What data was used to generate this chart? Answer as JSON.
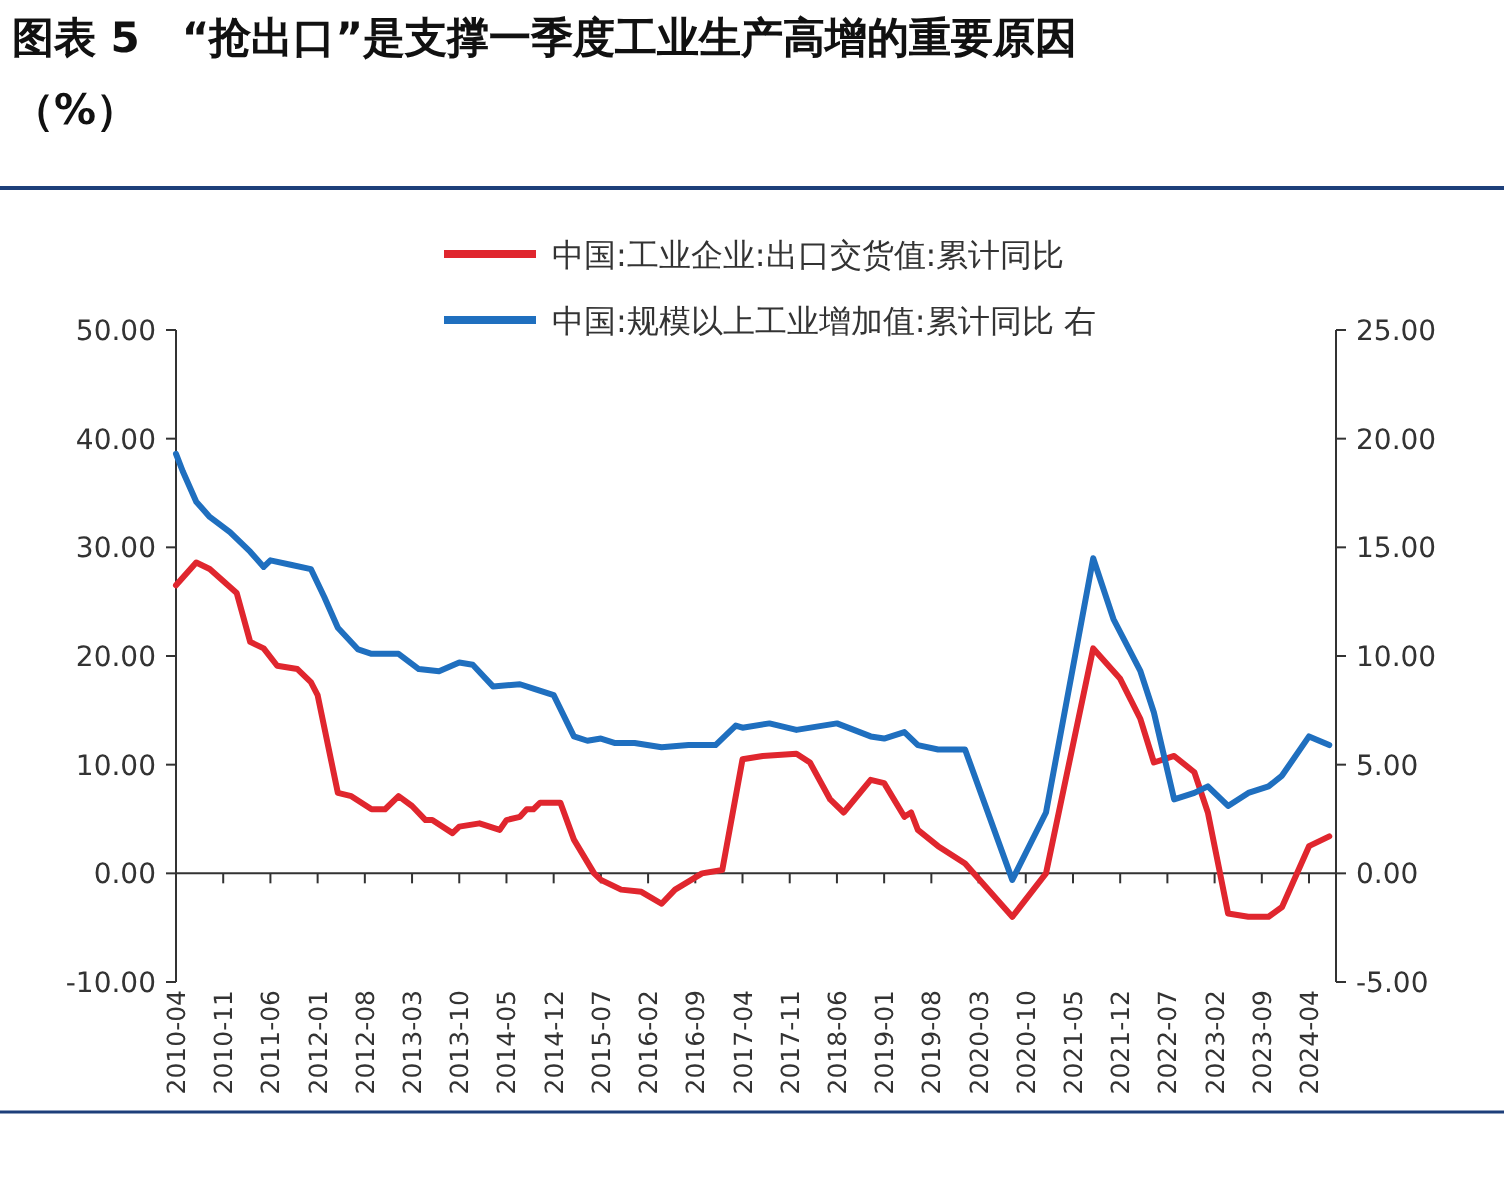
{
  "chart_data": {
    "type": "line",
    "title": "图表 5　“抢出口”是支撑一季度工业生产高增的重要原因（%）",
    "xlim": [
      "2010-04",
      "2024-08"
    ],
    "xticks": [
      "2010-04",
      "2010-11",
      "2011-06",
      "2012-01",
      "2012-08",
      "2013-03",
      "2013-10",
      "2014-05",
      "2014-12",
      "2015-07",
      "2016-02",
      "2016-09",
      "2017-04",
      "2017-11",
      "2018-06",
      "2019-01",
      "2019-08",
      "2020-03",
      "2020-10",
      "2021-05",
      "2021-12",
      "2022-07",
      "2023-02",
      "2023-09",
      "2024-04"
    ],
    "ylim": [
      -10,
      50
    ],
    "yticks": [
      {
        "value": -10,
        "label": "-10.00"
      },
      {
        "value": 0,
        "label": "0.00"
      },
      {
        "value": 10,
        "label": "10.00"
      },
      {
        "value": 20,
        "label": "20.00"
      },
      {
        "value": 30,
        "label": "30.00"
      },
      {
        "value": 40,
        "label": "40.00"
      },
      {
        "value": 50,
        "label": "50.00"
      }
    ],
    "y2lim": [
      -5,
      25
    ],
    "y2ticks": [
      {
        "value": -5,
        "label": "-5.00"
      },
      {
        "value": 0,
        "label": "0.00"
      },
      {
        "value": 5,
        "label": "5.00"
      },
      {
        "value": 10,
        "label": "10.00"
      },
      {
        "value": 15,
        "label": "15.00"
      },
      {
        "value": 20,
        "label": "20.00"
      },
      {
        "value": 25,
        "label": "25.00"
      }
    ],
    "legend": "top",
    "series": [
      {
        "name": "中国:工业企业:出口交货值:累计同比",
        "color": "#e0262e",
        "x": [
          "2010-04",
          "2010-07",
          "2010-09",
          "2011-01",
          "2011-03",
          "2011-05",
          "2011-07",
          "2011-10",
          "2011-12",
          "2012-01",
          "2012-04",
          "2012-06",
          "2012-09",
          "2012-11",
          "2013-01",
          "2013-03",
          "2013-05",
          "2013-06",
          "2013-09",
          "2013-10",
          "2014-01",
          "2014-04",
          "2014-05",
          "2014-07",
          "2014-08",
          "2014-09",
          "2014-10",
          "2015-01",
          "2015-03",
          "2015-06",
          "2015-07",
          "2015-10",
          "2016-01",
          "2016-04",
          "2016-06",
          "2016-10",
          "2017-01",
          "2017-04",
          "2017-07",
          "2017-12",
          "2018-02",
          "2018-05",
          "2018-07",
          "2018-11",
          "2019-01",
          "2019-04",
          "2019-05",
          "2019-06",
          "2019-09",
          "2020-01",
          "2020-08",
          "2021-01",
          "2021-08",
          "2021-12",
          "2022-03",
          "2022-05",
          "2022-08",
          "2022-11",
          "2023-01",
          "2023-04",
          "2023-07",
          "2023-10",
          "2023-12",
          "2024-04",
          "2024-07"
        ],
        "values": [
          26.5,
          28.6,
          28.0,
          25.8,
          21.3,
          20.7,
          19.1,
          18.8,
          17.6,
          16.4,
          7.4,
          7.1,
          5.9,
          5.9,
          7.1,
          6.2,
          4.9,
          4.9,
          3.7,
          4.3,
          4.6,
          4.0,
          4.9,
          5.2,
          5.9,
          5.9,
          6.5,
          6.5,
          3.1,
          0,
          -0.6,
          -1.5,
          -1.7,
          -2.8,
          -1.5,
          0,
          0.3,
          10.5,
          10.8,
          11.0,
          10.2,
          6.8,
          5.6,
          8.6,
          8.3,
          5.2,
          5.6,
          4.0,
          2.5,
          0.9,
          -4.0,
          0,
          20.7,
          17.9,
          14.2,
          10.2,
          10.8,
          9.3,
          5.6,
          -3.7,
          -4.0,
          -4.0,
          -3.1,
          2.5,
          3.4
        ]
      },
      {
        "name": "中国:规模以上工业增加值:累计同比 右",
        "color": "#1f6fbf",
        "axis": "y2",
        "x": [
          "2010-04",
          "2010-05",
          "2010-07",
          "2010-09",
          "2010-12",
          "2011-03",
          "2011-05",
          "2011-06",
          "2011-09",
          "2011-12",
          "2012-02",
          "2012-04",
          "2012-07",
          "2012-09",
          "2013-01",
          "2013-04",
          "2013-07",
          "2013-10",
          "2013-12",
          "2014-03",
          "2014-07",
          "2014-09",
          "2014-12",
          "2015-03",
          "2015-05",
          "2015-07",
          "2015-09",
          "2015-12",
          "2016-04",
          "2016-08",
          "2016-12",
          "2017-03",
          "2017-04",
          "2017-08",
          "2017-12",
          "2018-06",
          "2018-11",
          "2019-01",
          "2019-04",
          "2019-06",
          "2019-09",
          "2020-01",
          "2020-08",
          "2021-01",
          "2021-08",
          "2021-11",
          "2022-03",
          "2022-05",
          "2022-08",
          "2022-11",
          "2023-01",
          "2023-04",
          "2023-07",
          "2023-10",
          "2023-12",
          "2024-04",
          "2024-07"
        ],
        "values": [
          19.3,
          18.5,
          17.1,
          16.4,
          15.7,
          14.8,
          14.1,
          14.4,
          14.2,
          14.0,
          12.7,
          11.3,
          10.3,
          10.1,
          10.1,
          9.4,
          9.3,
          9.7,
          9.6,
          8.6,
          8.7,
          8.5,
          8.2,
          6.3,
          6.1,
          6.2,
          6.0,
          6.0,
          5.8,
          5.9,
          5.9,
          6.8,
          6.7,
          6.9,
          6.6,
          6.9,
          6.3,
          6.2,
          6.5,
          5.9,
          5.7,
          5.7,
          -0.3,
          2.8,
          14.5,
          11.7,
          9.3,
          7.4,
          3.4,
          3.7,
          4.0,
          3.1,
          3.7,
          4.0,
          4.5,
          6.3,
          5.9
        ]
      }
    ]
  }
}
